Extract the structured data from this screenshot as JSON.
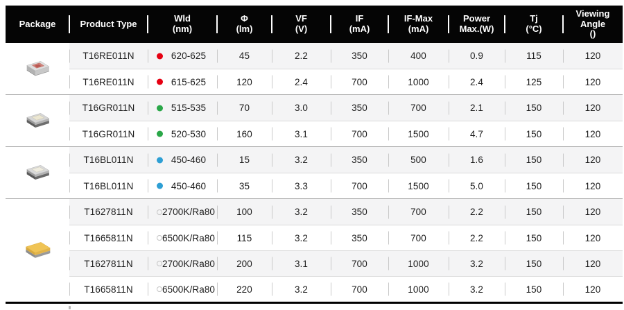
{
  "header": {
    "columns": [
      {
        "l1": "Package"
      },
      {
        "l1": "Product Type"
      },
      {
        "l1": "Wld",
        "l2": "(nm)"
      },
      {
        "l1": "Φ",
        "l2": "(lm)"
      },
      {
        "l1": "VF",
        "l2": "(V)"
      },
      {
        "l1": "IF",
        "l2": "(mA)"
      },
      {
        "l1": "IF-Max",
        "l2": "(mA)"
      },
      {
        "l1": "Power",
        "l2": "Max.(W)"
      },
      {
        "l1": "Tj",
        "l2": "(°C)"
      },
      {
        "l1": "Viewing",
        "l2": "Angle",
        "l3": "()"
      }
    ]
  },
  "groups": [
    {
      "package_icon": "smd-led-package-red",
      "rows": [
        {
          "product": "T16RE011N",
          "dot": {
            "color": "#e60012",
            "filled": true
          },
          "wld": "620-625",
          "phi": "45",
          "vf": "2.2",
          "if": "350",
          "ifmax": "400",
          "power": "0.9",
          "tj": "115",
          "angle": "120"
        },
        {
          "product": "T16RE011N",
          "dot": {
            "color": "#e60012",
            "filled": true
          },
          "wld": "615-625",
          "phi": "120",
          "vf": "2.4",
          "if": "700",
          "ifmax": "1000",
          "power": "2.4",
          "tj": "125",
          "angle": "120"
        }
      ]
    },
    {
      "package_icon": "smd-led-package-green",
      "rows": [
        {
          "product": "T16GR011N",
          "dot": {
            "color": "#2aa748",
            "filled": true
          },
          "wld": "515-535",
          "phi": "70",
          "vf": "3.0",
          "if": "350",
          "ifmax": "700",
          "power": "2.1",
          "tj": "150",
          "angle": "120"
        },
        {
          "product": "T16GR011N",
          "dot": {
            "color": "#2aa748",
            "filled": true
          },
          "wld": "520-530",
          "phi": "160",
          "vf": "3.1",
          "if": "700",
          "ifmax": "1500",
          "power": "4.7",
          "tj": "150",
          "angle": "120"
        }
      ]
    },
    {
      "package_icon": "smd-led-package-blue",
      "rows": [
        {
          "product": "T16BL011N",
          "dot": {
            "color": "#2e9fd4",
            "filled": true
          },
          "wld": "450-460",
          "phi": "15",
          "vf": "3.2",
          "if": "350",
          "ifmax": "500",
          "power": "1.6",
          "tj": "150",
          "angle": "120"
        },
        {
          "product": "T16BL011N",
          "dot": {
            "color": "#2e9fd4",
            "filled": true
          },
          "wld": "450-460",
          "phi": "35",
          "vf": "3.3",
          "if": "700",
          "ifmax": "1500",
          "power": "5.0",
          "tj": "150",
          "angle": "120"
        }
      ]
    },
    {
      "package_icon": "smd-led-package-white",
      "rows": [
        {
          "product": "T1627811N",
          "dot": {
            "color": "#c4c4c4",
            "filled": false
          },
          "wld": "2700K/Ra80",
          "phi": "100",
          "vf": "3.2",
          "if": "350",
          "ifmax": "700",
          "power": "2.2",
          "tj": "150",
          "angle": "120"
        },
        {
          "product": "T1665811N",
          "dot": {
            "color": "#c4c4c4",
            "filled": false
          },
          "wld": "6500K/Ra80",
          "phi": "115",
          "vf": "3.2",
          "if": "350",
          "ifmax": "700",
          "power": "2.2",
          "tj": "150",
          "angle": "120"
        },
        {
          "product": "T1627811N",
          "dot": {
            "color": "#c4c4c4",
            "filled": false
          },
          "wld": "2700K/Ra80",
          "phi": "200",
          "vf": "3.1",
          "if": "700",
          "ifmax": "1000",
          "power": "3.2",
          "tj": "150",
          "angle": "120"
        },
        {
          "product": "T1665811N",
          "dot": {
            "color": "#c4c4c4",
            "filled": false
          },
          "wld": "6500K/Ra80",
          "phi": "220",
          "vf": "3.2",
          "if": "700",
          "ifmax": "1000",
          "power": "3.2",
          "tj": "150",
          "angle": "120"
        }
      ]
    }
  ],
  "colors": {
    "header_bg": "#050505",
    "header_text": "#ffffff",
    "row_alt_bg": "#f4f4f5",
    "group_divider": "#a9a9a9",
    "row_divider": "#dadada",
    "red_dot": "#e60012",
    "green_dot": "#2aa748",
    "blue_dot": "#2e9fd4",
    "white_ring": "#c4c4c4"
  }
}
